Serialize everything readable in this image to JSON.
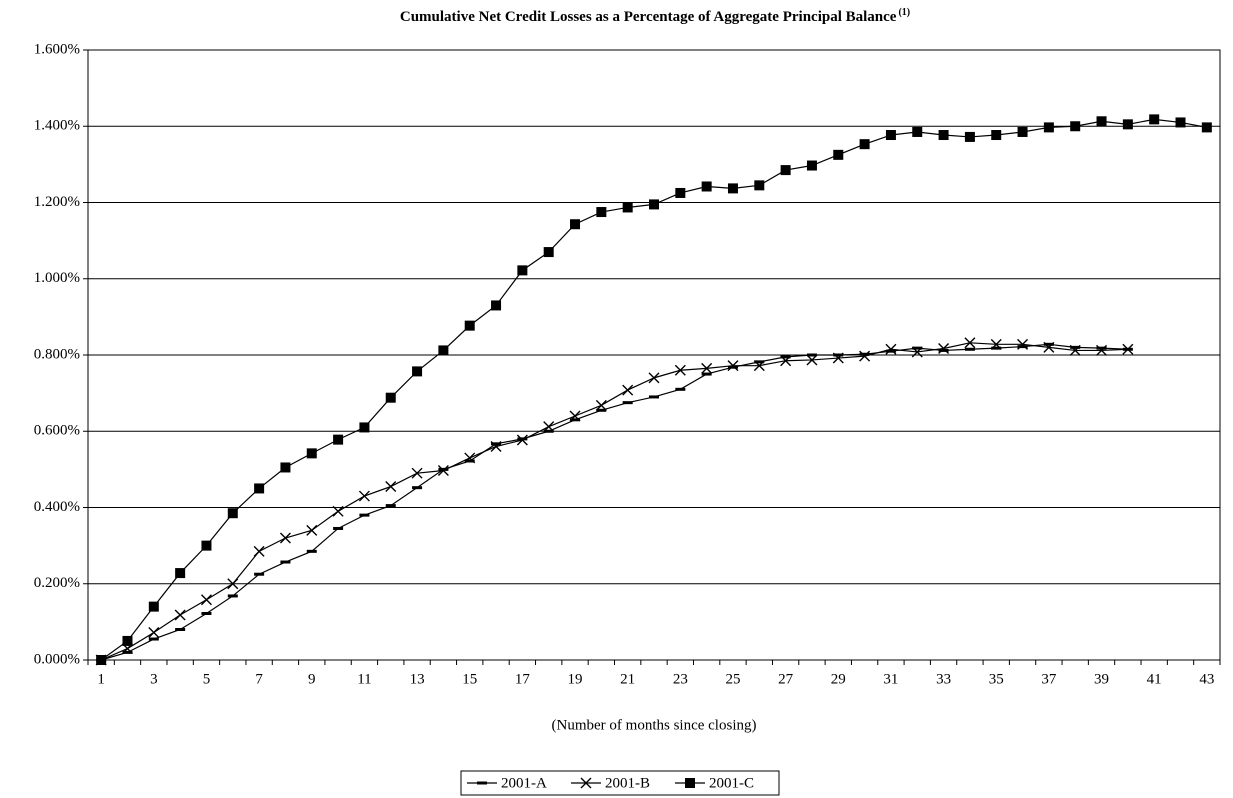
{
  "chart_data": {
    "type": "line",
    "title": "Cumulative Net Credit Losses as a Percentage of Aggregate Principal Balance",
    "title_note": "(1)",
    "x_label": "(Number of months since closing)",
    "categories": [
      "1",
      null,
      "3",
      null,
      "5",
      null,
      "7",
      null,
      "9",
      null,
      "11",
      null,
      "13",
      null,
      "15",
      null,
      "17",
      null,
      "19",
      null,
      "21",
      null,
      "23",
      null,
      "25",
      null,
      "27",
      null,
      "29",
      null,
      "31",
      null,
      "33",
      null,
      "35",
      null,
      "37",
      null,
      "39",
      null,
      "41",
      null,
      "43"
    ],
    "ylim": [
      0,
      1.6
    ],
    "yticks": [
      {
        "value": 0,
        "label": "0.000%"
      },
      {
        "value": 0.2,
        "label": "0.200%"
      },
      {
        "value": 0.4,
        "label": "0.400%"
      },
      {
        "value": 0.6,
        "label": "0.600%"
      },
      {
        "value": 0.8,
        "label": "0.800%"
      },
      {
        "value": 1.0,
        "label": "1.000%"
      },
      {
        "value": 1.2,
        "label": "1.200%"
      },
      {
        "value": 1.4,
        "label": "1.400%"
      },
      {
        "value": 1.6,
        "label": "1.600%"
      }
    ],
    "grid": true,
    "legend": "bottom",
    "series": [
      {
        "name": "2001-A",
        "color": "#000000",
        "marker": "dash",
        "values": [
          0,
          0.02,
          0.055,
          0.08,
          0.122,
          0.168,
          0.225,
          0.257,
          0.285,
          0.345,
          0.38,
          0.405,
          0.452,
          0.5,
          0.522,
          0.567,
          0.58,
          0.6,
          0.63,
          0.655,
          0.675,
          0.69,
          0.71,
          0.75,
          0.768,
          0.782,
          0.795,
          0.8,
          0.8,
          0.802,
          0.81,
          0.818,
          0.812,
          0.815,
          0.818,
          0.822,
          0.828,
          0.82,
          0.818,
          0.815,
          null,
          null,
          null
        ]
      },
      {
        "name": "2001-B",
        "color": "#000000",
        "marker": "x",
        "values": [
          0,
          0.03,
          0.072,
          0.118,
          0.158,
          0.2,
          0.285,
          0.32,
          0.34,
          0.39,
          0.43,
          0.455,
          0.49,
          0.497,
          0.53,
          0.56,
          0.577,
          0.612,
          0.64,
          0.668,
          0.708,
          0.74,
          0.76,
          0.765,
          0.772,
          0.772,
          0.785,
          0.787,
          0.792,
          0.797,
          0.815,
          0.808,
          0.817,
          0.832,
          0.828,
          0.828,
          0.82,
          0.812,
          0.812,
          0.815,
          null,
          null,
          null
        ]
      },
      {
        "name": "2001-C",
        "color": "#000000",
        "marker": "square",
        "values": [
          0,
          0.05,
          0.14,
          0.228,
          0.3,
          0.385,
          0.45,
          0.505,
          0.542,
          0.578,
          0.61,
          0.688,
          0.757,
          0.812,
          0.877,
          0.93,
          1.022,
          1.07,
          1.143,
          1.175,
          1.187,
          1.195,
          1.225,
          1.242,
          1.237,
          1.245,
          1.285,
          1.297,
          1.325,
          1.353,
          1.377,
          1.385,
          1.377,
          1.372,
          1.377,
          1.385,
          1.397,
          1.4,
          1.413,
          1.405,
          1.418,
          1.41,
          1.397
        ]
      }
    ]
  }
}
